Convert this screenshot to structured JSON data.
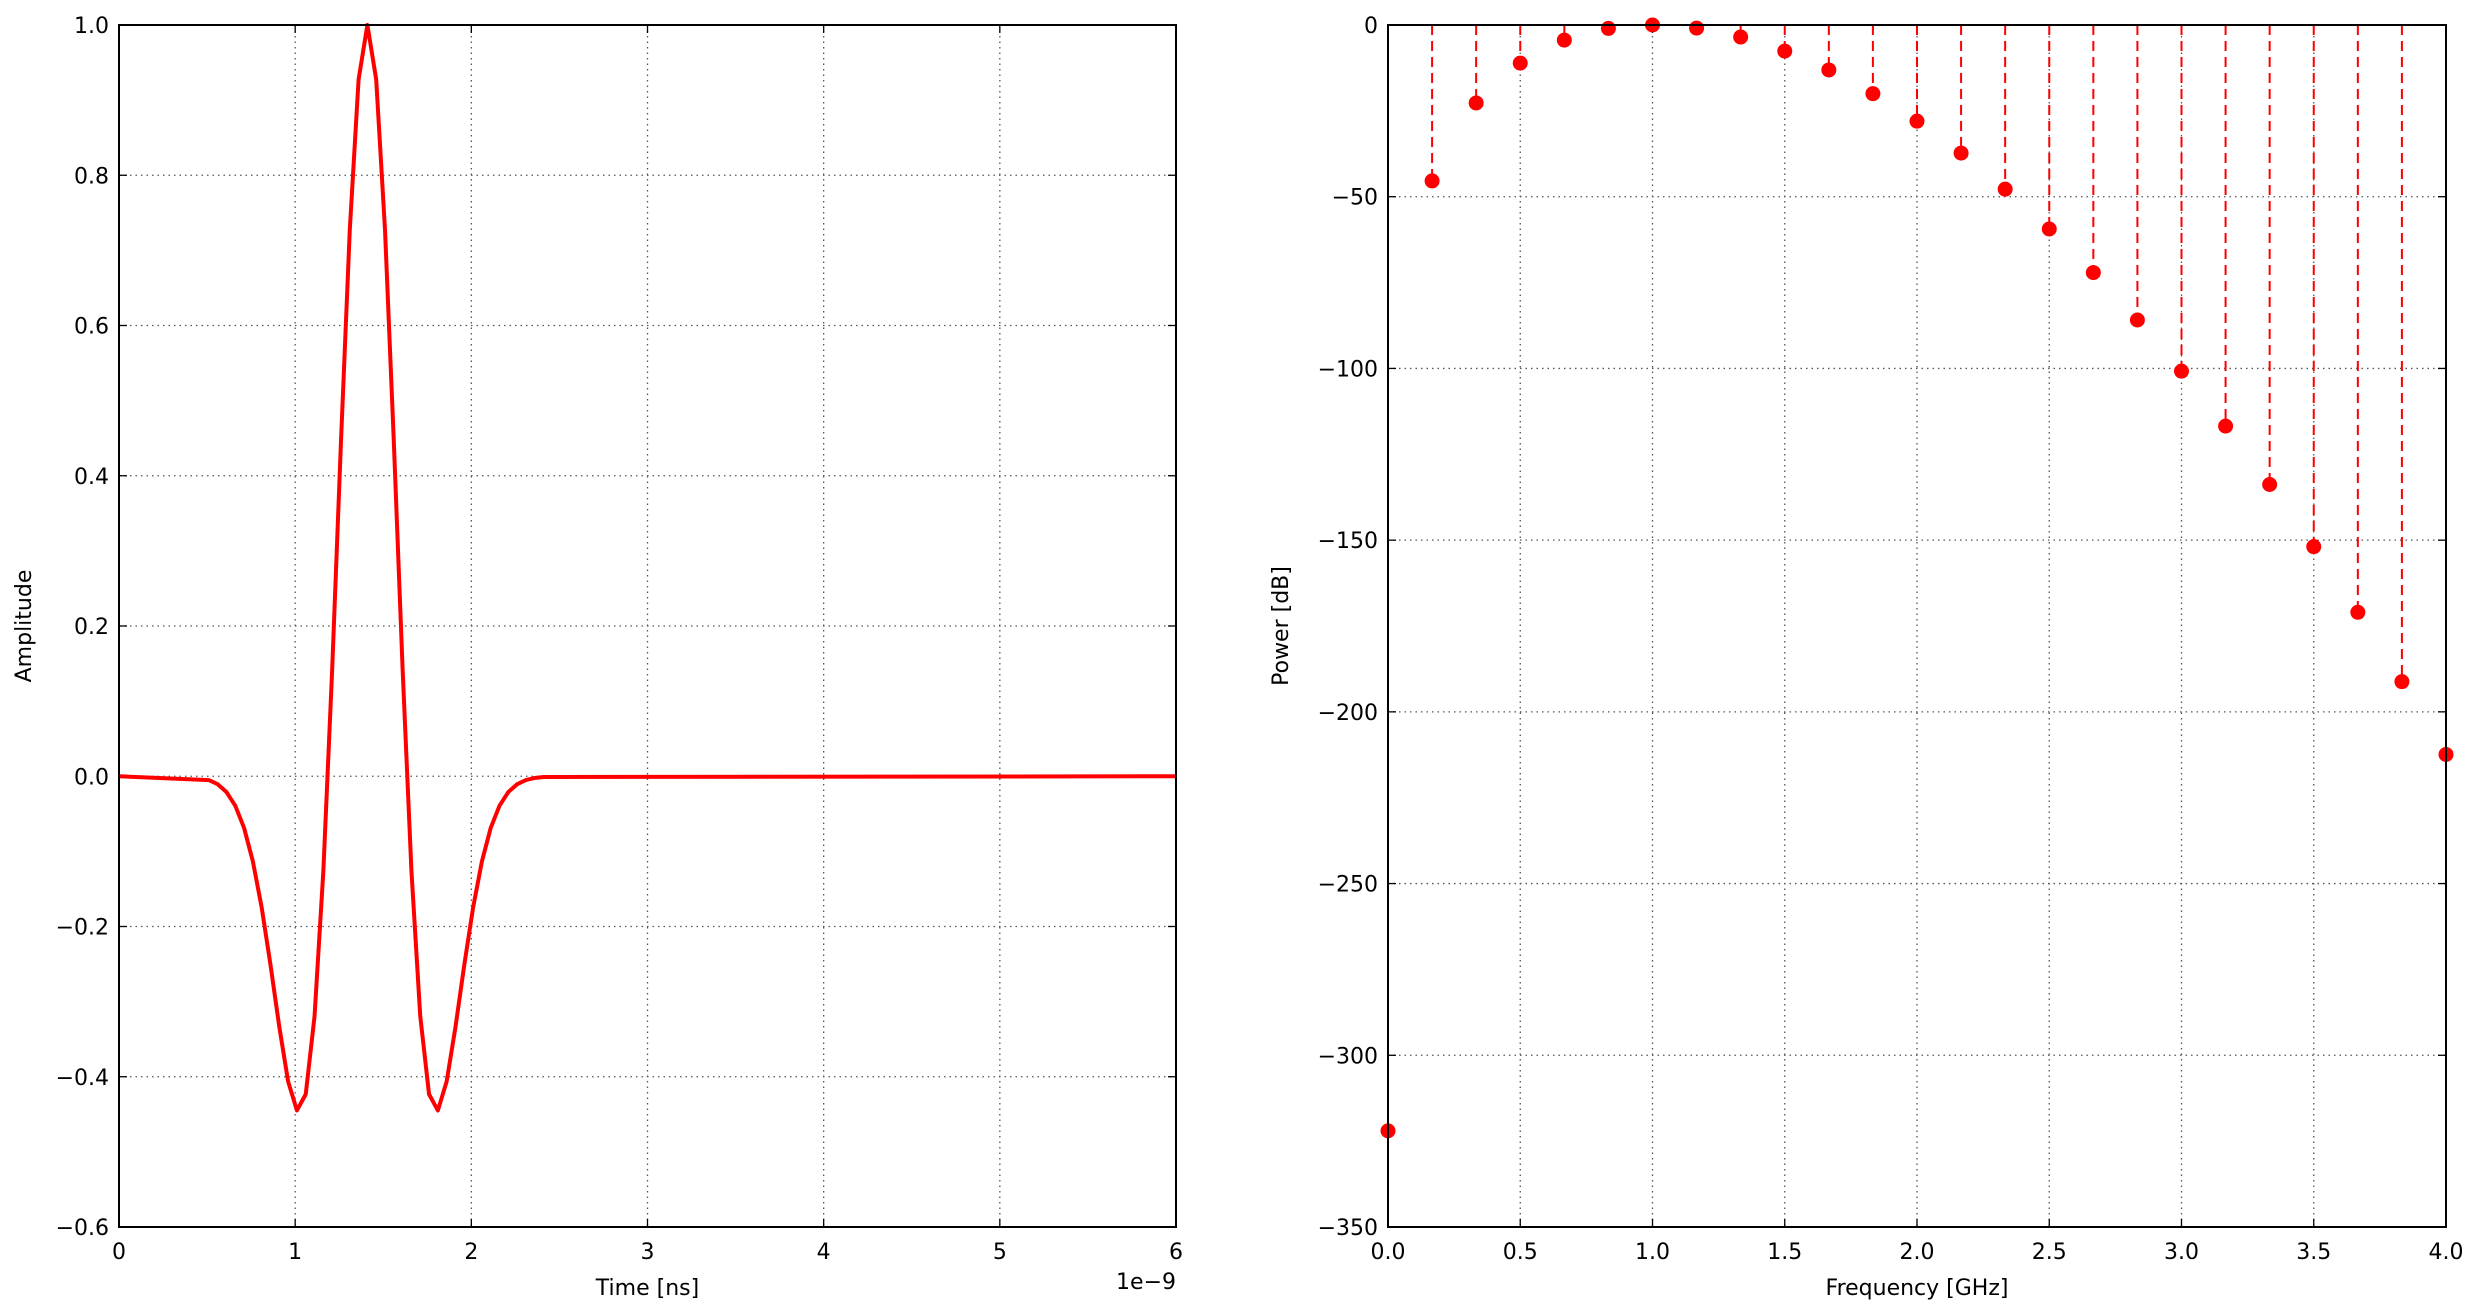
{
  "chart_data": [
    {
      "type": "line",
      "xlabel": "Time [ns]",
      "ylabel": "Amplitude",
      "x_offset_label": "1e−9",
      "x": [
        0,
        5.1e-10,
        5.6e-10,
        6.1e-10,
        6.6e-10,
        7.1e-10,
        7.6e-10,
        8.1e-10,
        8.6e-10,
        9.1e-10,
        9.6e-10,
        1.01e-09,
        1.06e-09,
        1.11e-09,
        1.16e-09,
        1.21e-09,
        1.26e-09,
        1.31e-09,
        1.36e-09,
        1.41e-09,
        1.46e-09,
        1.51e-09,
        1.56e-09,
        1.61e-09,
        1.66e-09,
        1.71e-09,
        1.76e-09,
        1.81e-09,
        1.86e-09,
        1.91e-09,
        1.96e-09,
        2.01e-09,
        2.06e-09,
        2.11e-09,
        2.16e-09,
        2.21e-09,
        2.26e-09,
        2.31e-09,
        2.36e-09,
        2.41e-09,
        6e-09
      ],
      "series": [
        {
          "color": "#ff0000",
          "values": [
            0,
            -0.0051,
            -0.0106,
            -0.021,
            -0.0392,
            -0.0688,
            -0.1134,
            -0.1748,
            -0.2511,
            -0.3337,
            -0.4062,
            -0.4449,
            -0.4233,
            -0.3194,
            -0.1261,
            0.1418,
            0.4452,
            0.7272,
            0.9275,
            1,
            0.9275,
            0.7272,
            0.4452,
            0.1418,
            -0.1261,
            -0.3194,
            -0.4233,
            -0.4449,
            -0.4062,
            -0.3337,
            -0.2511,
            -0.1748,
            -0.1134,
            -0.0688,
            -0.0392,
            -0.021,
            -0.0106,
            -0.0051,
            -0.0023,
            -0.001,
            0
          ]
        }
      ],
      "xlim": [
        0,
        6e-09
      ],
      "xticks": [
        0,
        {
          "value": 1e-09,
          "label": "1"
        },
        {
          "value": 2e-09,
          "label": "2"
        },
        {
          "value": 3e-09,
          "label": "3"
        },
        {
          "value": 4e-09,
          "label": "4"
        },
        {
          "value": 5e-09,
          "label": "5"
        },
        {
          "value": 6e-09,
          "label": "6"
        }
      ],
      "ylim": [
        -0.6,
        1.0
      ],
      "yticks": [
        {
          "value": -0.6,
          "label": "−0.6"
        },
        {
          "value": -0.4,
          "label": "−0.4"
        },
        {
          "value": -0.2,
          "label": "−0.2"
        },
        {
          "value": 0,
          "label": "0.0"
        },
        0.2,
        0.4,
        0.6,
        0.8,
        {
          "value": 1,
          "label": "1.0"
        }
      ],
      "grid": true
    },
    {
      "type": "stem",
      "xlabel": "Frequency [GHz]",
      "ylabel": "Power [dB]",
      "x": [
        0,
        0.1667,
        0.3333,
        0.5,
        0.6667,
        0.8333,
        1.0,
        1.1667,
        1.3333,
        1.5,
        1.6667,
        1.8333,
        2.0,
        2.1667,
        2.3333,
        2.5,
        2.6667,
        2.8333,
        3.0,
        3.1667,
        3.3333,
        3.5,
        3.6667,
        3.8333,
        4.0
      ],
      "series": [
        {
          "color": "#ff0000",
          "values": [
            -322,
            -45.4,
            -22.7,
            -11.1,
            -4.4,
            -1.0,
            0,
            -0.9,
            -3.5,
            -7.6,
            -13.1,
            -20.0,
            -28.0,
            -37.3,
            -47.8,
            -59.4,
            -72.1,
            -85.9,
            -100.8,
            -116.8,
            -133.8,
            -151.9,
            -171.0,
            -191.2,
            -212.4
          ]
        }
      ],
      "xlim": [
        0,
        4.0
      ],
      "xticks": [
        {
          "value": 0,
          "label": "0.0"
        },
        0.5,
        {
          "value": 1,
          "label": "1.0"
        },
        1.5,
        {
          "value": 2,
          "label": "2.0"
        },
        2.5,
        {
          "value": 3,
          "label": "3.0"
        },
        3.5,
        {
          "value": 4,
          "label": "4.0"
        }
      ],
      "ylim": [
        -350,
        0
      ],
      "yticks": [
        {
          "value": -350,
          "label": "−350"
        },
        {
          "value": -300,
          "label": "−300"
        },
        {
          "value": -250,
          "label": "−250"
        },
        {
          "value": -200,
          "label": "−200"
        },
        {
          "value": -150,
          "label": "−150"
        },
        {
          "value": -100,
          "label": "−100"
        },
        {
          "value": -50,
          "label": "−50"
        },
        0
      ],
      "grid": true
    }
  ]
}
